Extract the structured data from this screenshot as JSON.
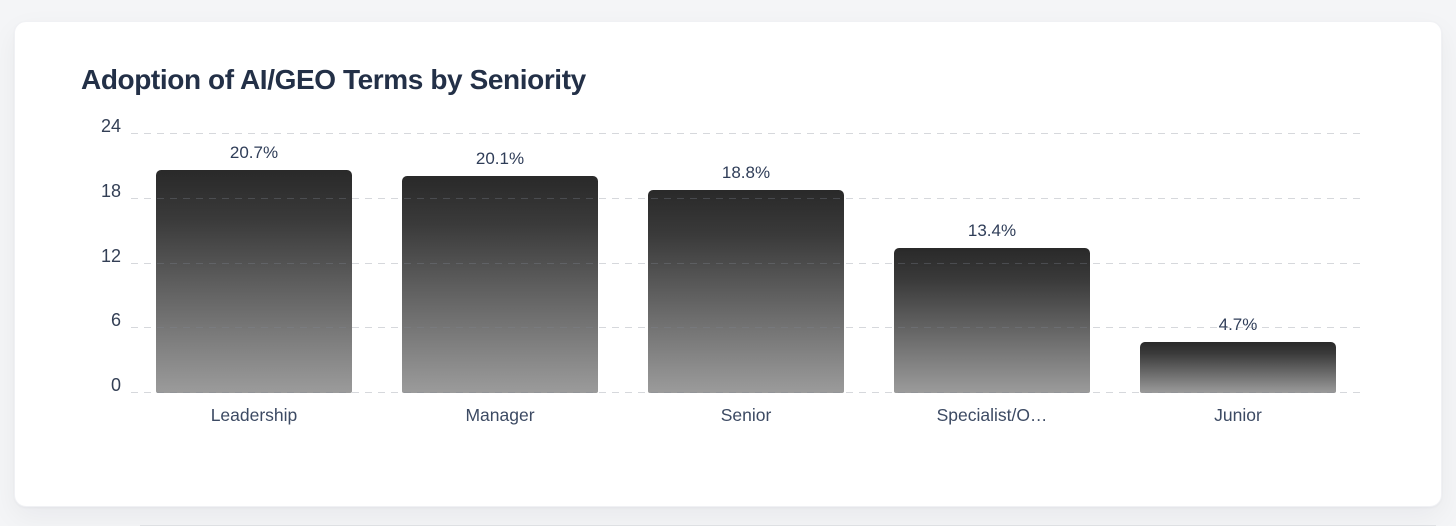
{
  "page": {
    "background_color": "#f4f5f7",
    "card_background_color": "#ffffff"
  },
  "chart_data": {
    "type": "bar",
    "title": "Adoption of AI/GEO Terms by Seniority",
    "categories": [
      "Leadership",
      "Manager",
      "Senior",
      "Specialist/O…",
      "Junior"
    ],
    "values": [
      20.7,
      20.1,
      18.8,
      13.4,
      4.7
    ],
    "value_labels": [
      "20.7%",
      "20.1%",
      "18.8%",
      "13.4%",
      "4.7%"
    ],
    "xlabel": "",
    "ylabel": "",
    "y_ticks": [
      0,
      6,
      12,
      18,
      24
    ],
    "ylim": [
      0,
      24
    ],
    "grid": "horizontal dashed gridlines at each y tick, drawn over bars",
    "legend": "none",
    "bar_gradient_top_color": "#292929",
    "bar_gradient_bottom_color": "#9b9b9b",
    "title_color": "#233047",
    "axis_label_color": "#333f55",
    "category_label_color": "#3c4a63",
    "value_label_color": "#2f3d58",
    "gridline_color": "#d9dbdf"
  }
}
